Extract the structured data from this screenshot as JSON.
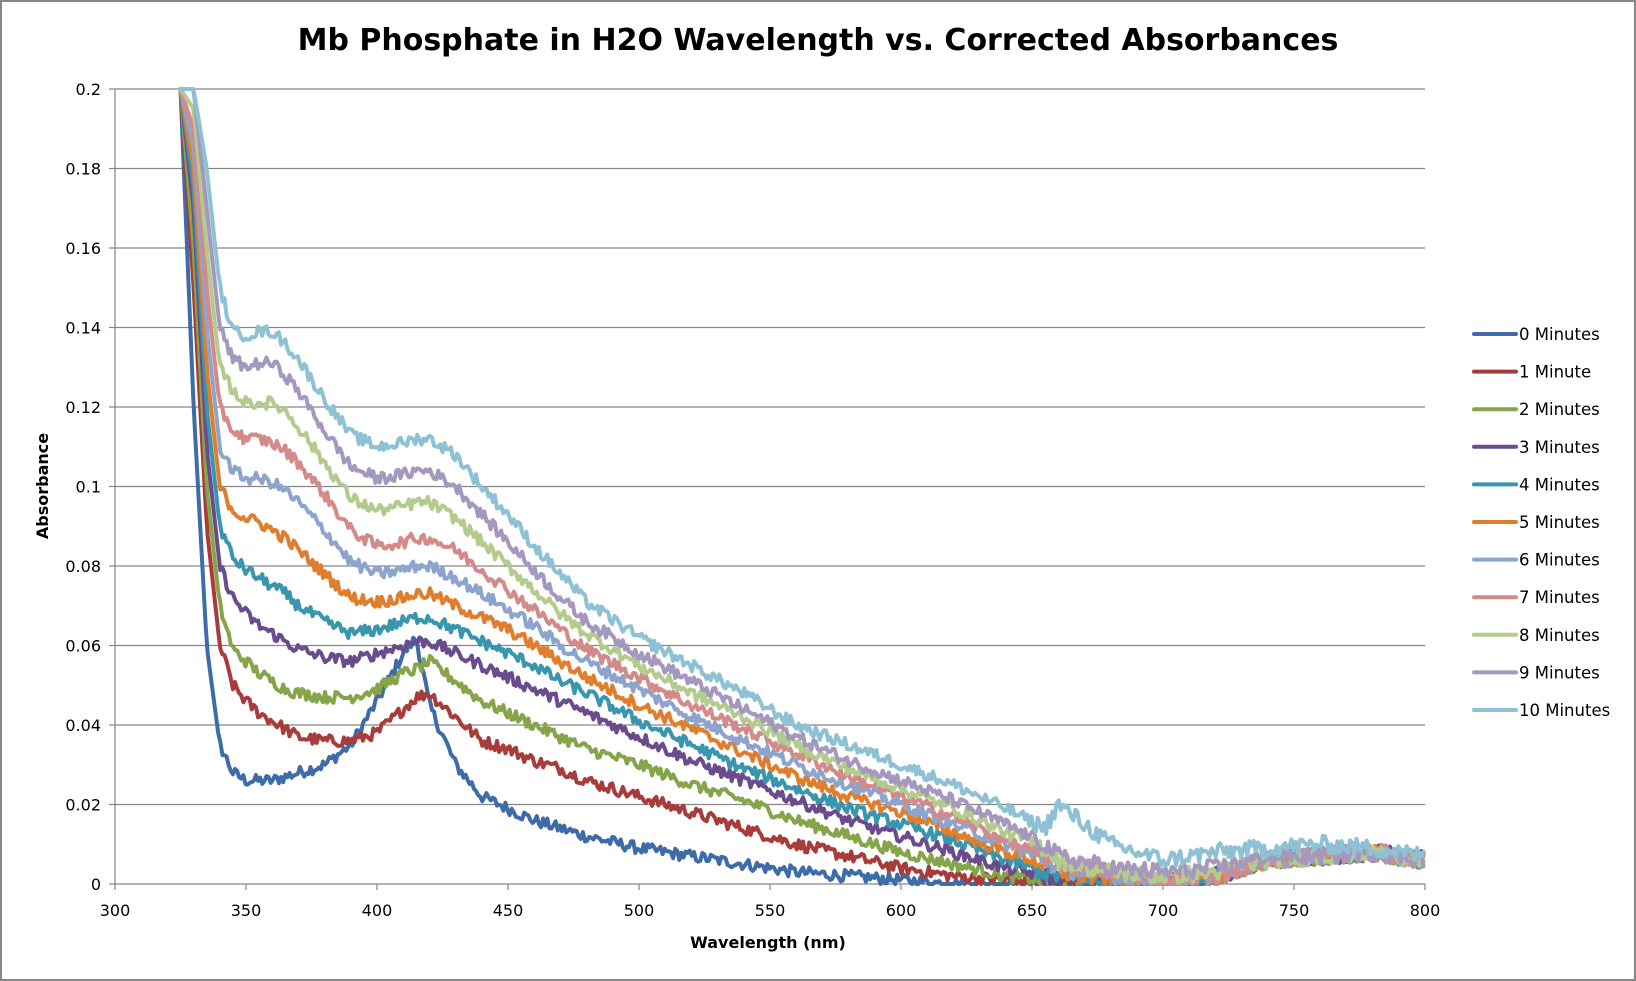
{
  "chart_data": {
    "type": "line",
    "title": "Mb Phosphate in H2O Wavelength vs. Corrected Absorbances",
    "xlabel": "Wavelength (nm)",
    "ylabel": "Absorbance",
    "xlim": [
      300,
      800
    ],
    "ylim": [
      0,
      0.2
    ],
    "xticks": [
      "300",
      "350",
      "400",
      "450",
      "500",
      "550",
      "600",
      "650",
      "700",
      "750",
      "800"
    ],
    "yticks": [
      "0",
      "0.02",
      "0.04",
      "0.06",
      "0.08",
      "0.1",
      "0.12",
      "0.14",
      "0.16",
      "0.18",
      "0.2"
    ],
    "grid": "horizontal",
    "legend_position": "right",
    "x": [
      325,
      330,
      335,
      340,
      345,
      350,
      355,
      360,
      365,
      370,
      380,
      390,
      400,
      410,
      415,
      420,
      430,
      440,
      450,
      460,
      470,
      480,
      500,
      520,
      540,
      560,
      580,
      600,
      620,
      640,
      655,
      660,
      680,
      700,
      720,
      740,
      760,
      780,
      800
    ],
    "series": [
      {
        "name": "0 Minutes",
        "color": "#3E6CA8",
        "values": [
          0.2,
          0.12,
          0.06,
          0.035,
          0.028,
          0.026,
          0.026,
          0.026,
          0.027,
          0.028,
          0.03,
          0.035,
          0.046,
          0.058,
          0.062,
          0.045,
          0.03,
          0.022,
          0.019,
          0.016,
          0.014,
          0.012,
          0.009,
          0.007,
          0.005,
          0.003,
          0.002,
          0.001,
          0.0,
          0.0,
          0.0,
          0.0,
          0.0,
          0.0,
          0.002,
          0.006,
          0.007,
          0.008,
          0.006
        ]
      },
      {
        "name": "1 Minute",
        "color": "#A83C3A",
        "values": [
          0.2,
          0.15,
          0.09,
          0.06,
          0.05,
          0.046,
          0.043,
          0.041,
          0.039,
          0.037,
          0.036,
          0.036,
          0.038,
          0.044,
          0.047,
          0.048,
          0.042,
          0.036,
          0.034,
          0.031,
          0.029,
          0.026,
          0.022,
          0.018,
          0.014,
          0.01,
          0.007,
          0.004,
          0.002,
          0.001,
          0.0,
          0.0,
          0.0,
          0.0,
          0.002,
          0.006,
          0.007,
          0.008,
          0.006
        ]
      },
      {
        "name": "2 Minutes",
        "color": "#86A44A",
        "values": [
          0.2,
          0.16,
          0.1,
          0.07,
          0.059,
          0.056,
          0.053,
          0.051,
          0.049,
          0.048,
          0.047,
          0.047,
          0.049,
          0.053,
          0.054,
          0.056,
          0.051,
          0.046,
          0.043,
          0.04,
          0.037,
          0.034,
          0.03,
          0.025,
          0.021,
          0.016,
          0.012,
          0.008,
          0.005,
          0.002,
          0.001,
          0.0,
          0.0,
          0.0,
          0.002,
          0.006,
          0.007,
          0.008,
          0.006
        ]
      },
      {
        "name": "3 Minutes",
        "color": "#6A4C8E",
        "values": [
          0.2,
          0.17,
          0.11,
          0.08,
          0.072,
          0.068,
          0.065,
          0.063,
          0.061,
          0.059,
          0.057,
          0.056,
          0.058,
          0.06,
          0.061,
          0.061,
          0.058,
          0.055,
          0.052,
          0.049,
          0.046,
          0.043,
          0.037,
          0.031,
          0.026,
          0.021,
          0.016,
          0.012,
          0.008,
          0.004,
          0.002,
          0.001,
          0.0,
          0.0,
          0.002,
          0.006,
          0.007,
          0.008,
          0.006
        ]
      },
      {
        "name": "4 Minutes",
        "color": "#3A95AE",
        "values": [
          0.2,
          0.175,
          0.12,
          0.09,
          0.082,
          0.079,
          0.077,
          0.075,
          0.073,
          0.07,
          0.066,
          0.063,
          0.064,
          0.066,
          0.067,
          0.067,
          0.064,
          0.061,
          0.058,
          0.055,
          0.051,
          0.048,
          0.041,
          0.035,
          0.029,
          0.024,
          0.019,
          0.015,
          0.011,
          0.006,
          0.003,
          0.002,
          0.0,
          0.0,
          0.002,
          0.006,
          0.007,
          0.008,
          0.006
        ]
      },
      {
        "name": "5 Minutes",
        "color": "#E07E2E",
        "values": [
          0.2,
          0.18,
          0.13,
          0.1,
          0.094,
          0.092,
          0.091,
          0.089,
          0.087,
          0.084,
          0.078,
          0.072,
          0.071,
          0.072,
          0.073,
          0.073,
          0.07,
          0.067,
          0.064,
          0.06,
          0.056,
          0.052,
          0.045,
          0.039,
          0.033,
          0.027,
          0.022,
          0.018,
          0.013,
          0.008,
          0.005,
          0.003,
          0.001,
          0.0,
          0.002,
          0.006,
          0.007,
          0.008,
          0.006
        ]
      },
      {
        "name": "6 Minutes",
        "color": "#8CA4CE",
        "values": [
          0.2,
          0.185,
          0.14,
          0.11,
          0.104,
          0.102,
          0.102,
          0.101,
          0.099,
          0.096,
          0.089,
          0.081,
          0.078,
          0.079,
          0.08,
          0.08,
          0.077,
          0.073,
          0.069,
          0.065,
          0.06,
          0.056,
          0.049,
          0.042,
          0.036,
          0.03,
          0.025,
          0.02,
          0.015,
          0.01,
          0.006,
          0.004,
          0.002,
          0.001,
          0.002,
          0.006,
          0.007,
          0.008,
          0.006
        ]
      },
      {
        "name": "7 Minutes",
        "color": "#D48A88",
        "values": [
          0.2,
          0.19,
          0.15,
          0.12,
          0.114,
          0.112,
          0.112,
          0.111,
          0.109,
          0.106,
          0.098,
          0.089,
          0.085,
          0.086,
          0.087,
          0.087,
          0.084,
          0.079,
          0.074,
          0.069,
          0.064,
          0.059,
          0.052,
          0.045,
          0.039,
          0.033,
          0.027,
          0.022,
          0.017,
          0.011,
          0.007,
          0.005,
          0.003,
          0.001,
          0.002,
          0.006,
          0.007,
          0.008,
          0.006
        ]
      },
      {
        "name": "8 Minutes",
        "color": "#B4CB8E",
        "values": [
          0.2,
          0.195,
          0.16,
          0.13,
          0.124,
          0.121,
          0.121,
          0.121,
          0.119,
          0.115,
          0.106,
          0.097,
          0.094,
          0.095,
          0.096,
          0.096,
          0.092,
          0.086,
          0.08,
          0.074,
          0.068,
          0.063,
          0.055,
          0.048,
          0.042,
          0.035,
          0.029,
          0.024,
          0.019,
          0.013,
          0.009,
          0.006,
          0.003,
          0.002,
          0.003,
          0.006,
          0.007,
          0.008,
          0.006
        ]
      },
      {
        "name": "9 Minutes",
        "color": "#A598BF",
        "values": [
          0.2,
          0.2,
          0.17,
          0.14,
          0.132,
          0.13,
          0.131,
          0.131,
          0.128,
          0.124,
          0.114,
          0.105,
          0.102,
          0.103,
          0.104,
          0.104,
          0.1,
          0.093,
          0.086,
          0.079,
          0.072,
          0.066,
          0.058,
          0.051,
          0.044,
          0.037,
          0.031,
          0.026,
          0.021,
          0.015,
          0.01,
          0.007,
          0.004,
          0.003,
          0.004,
          0.007,
          0.007,
          0.008,
          0.006
        ]
      },
      {
        "name": "10 Minutes",
        "color": "#8EC1D4",
        "values": [
          0.2,
          0.2,
          0.18,
          0.15,
          0.139,
          0.138,
          0.139,
          0.139,
          0.136,
          0.132,
          0.122,
          0.113,
          0.11,
          0.111,
          0.112,
          0.112,
          0.108,
          0.1,
          0.093,
          0.085,
          0.078,
          0.071,
          0.062,
          0.055,
          0.048,
          0.04,
          0.035,
          0.03,
          0.025,
          0.019,
          0.014,
          0.02,
          0.01,
          0.006,
          0.008,
          0.009,
          0.01,
          0.009,
          0.007
        ]
      }
    ]
  }
}
